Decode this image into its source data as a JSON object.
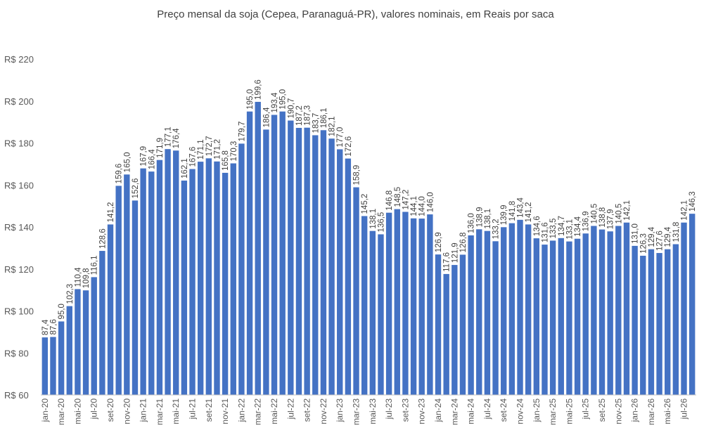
{
  "chart_data": {
    "type": "bar",
    "title": "Preço mensal da soja (Cepea, Paranaguá-PR), valores nominais, em Reais por saca",
    "xlabel": "",
    "ylabel": "",
    "ylim": [
      60,
      220
    ],
    "yticks": [
      "R$ 60",
      "R$ 80",
      "R$ 100",
      "R$ 120",
      "R$ 140",
      "R$ 160",
      "R$ 180",
      "R$ 200",
      "R$ 220"
    ],
    "grid": false,
    "bar_color": "#4472C4",
    "categories": [
      "jan-20",
      "fev-20",
      "mar-20",
      "abr-20",
      "mai-20",
      "jun-20",
      "jul-20",
      "ago-20",
      "set-20",
      "out-20",
      "nov-20",
      "dez-20",
      "jan-21",
      "fev-21",
      "mar-21",
      "abr-21",
      "mai-21",
      "jun-21",
      "jul-21",
      "ago-21",
      "set-21",
      "out-21",
      "nov-21",
      "dez-21",
      "jan-22",
      "fev-22",
      "mar-22",
      "abr-22",
      "mai-22",
      "jun-22",
      "jul-22",
      "ago-22",
      "set-22",
      "out-22",
      "nov-22",
      "dez-22",
      "jan-23",
      "fev-23",
      "mar-23",
      "abr-23",
      "mai-23",
      "jun-23",
      "jul-23",
      "ago-23",
      "set-23",
      "out-23",
      "nov-23",
      "dez-23",
      "jan-24",
      "fev-24",
      "mar-24",
      "abr-24",
      "mai-24",
      "jun-24",
      "jul-24",
      "ago-24",
      "set-24",
      "out-24",
      "nov-24",
      "dez-24",
      "jan-25",
      "fev-25",
      "mar-25",
      "abr-25",
      "mai-25",
      "jun-25",
      "jul-25",
      "ago-25",
      "set-25",
      "out-25",
      "nov-25",
      "dez-25",
      "jan-26",
      "fev-26",
      "mar-26",
      "abr-26",
      "mai-26",
      "jun-26",
      "jul-26",
      "ago-26"
    ],
    "tick_labels_shown": [
      "jan-20",
      "mar-20",
      "mai-20",
      "jul-20",
      "set-20",
      "nov-20",
      "jan-21",
      "mar-21",
      "mai-21",
      "jul-21",
      "set-21",
      "nov-21",
      "jan-22",
      "mar-22",
      "mai-22",
      "jul-22",
      "set-22",
      "nov-22",
      "jan-23",
      "mar-23",
      "mai-23",
      "jul-23",
      "set-23",
      "nov-23",
      "jan-24",
      "mar-24",
      "mai-24",
      "jul-24",
      "set-24",
      "nov-24",
      "jan-25",
      "mar-25",
      "mai-25",
      "jul-25",
      "set-25",
      "nov-25",
      "jan-26",
      "mar-26",
      "mai-26",
      "jul-26"
    ],
    "values": [
      87.4,
      87.6,
      95.0,
      102.3,
      110.4,
      109.8,
      116.1,
      128.6,
      141.2,
      159.6,
      165.0,
      152.6,
      167.9,
      166.4,
      171.9,
      177.1,
      176.4,
      162.1,
      167.6,
      171.1,
      172.7,
      171.2,
      165.8,
      170.3,
      179.7,
      195.0,
      199.6,
      186.4,
      193.4,
      195.0,
      190.7,
      187.2,
      187.3,
      183.7,
      186.1,
      182.1,
      177.0,
      172.6,
      158.9,
      145.2,
      138.1,
      136.5,
      146.8,
      148.5,
      147.2,
      144.1,
      144.0,
      146.0,
      126.9,
      117.6,
      121.9,
      126.8,
      136.0,
      138.9,
      138.1,
      133.2,
      139.9,
      141.8,
      143.4,
      141.2,
      134.6,
      131.6,
      133.5,
      134.7,
      133.1,
      134.4,
      136.9,
      140.5,
      138.8,
      137.9,
      140.5,
      142.1,
      131.0,
      126.3,
      129.4,
      127.6,
      129.4,
      131.8,
      142.1,
      146.3
    ],
    "value_labels": [
      "87,4",
      "87,6",
      "95,0",
      "102,3",
      "110,4",
      "109,8",
      "116,1",
      "128,6",
      "141,2",
      "159,6",
      "165,0",
      "152,6",
      "167,9",
      "166,4",
      "171,9",
      "177,1",
      "176,4",
      "162,1",
      "167,6",
      "171,1",
      "172,7",
      "171,2",
      "165,8",
      "170,3",
      "179,7",
      "195,0",
      "199,6",
      "186,4",
      "193,4",
      "195,0",
      "190,7",
      "187,2",
      "187,3",
      "183,7",
      "186,1",
      "182,1",
      "177,0",
      "172,6",
      "158,9",
      "145,2",
      "138,1",
      "136,5",
      "146,8",
      "148,5",
      "147,2",
      "144,1",
      "144,0",
      "146,0",
      "126,9",
      "117,6",
      "121,9",
      "126,8",
      "136,0",
      "138,9",
      "138,1",
      "133,2",
      "139,9",
      "141,8",
      "143,4",
      "141,2",
      "134,6",
      "131,6",
      "133,5",
      "134,7",
      "133,1",
      "134,4",
      "136,9",
      "140,5",
      "138,8",
      "137,9",
      "140,5",
      "142,1",
      "131,0",
      "126,3",
      "129,4",
      "127,6",
      "129,4",
      "131,8",
      "142,1",
      "146,3"
    ]
  }
}
